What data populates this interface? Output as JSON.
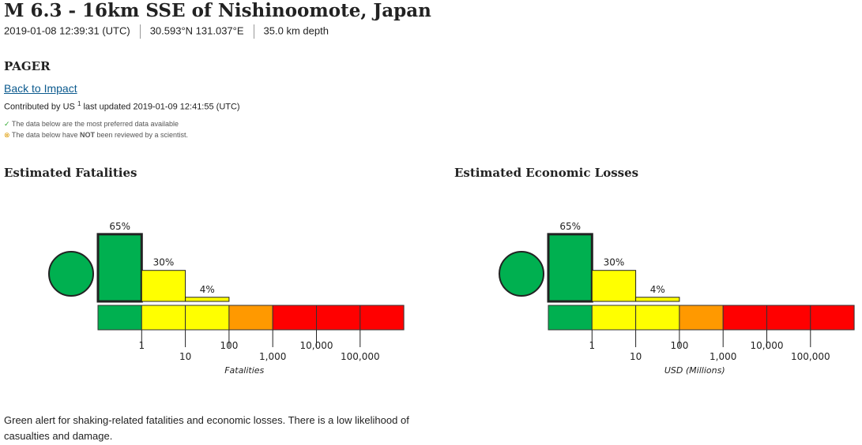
{
  "header": {
    "title": "M 6.3 - 16km SSE of Nishinoomote, Japan",
    "time": "2019-01-08 12:39:31 (UTC)",
    "location": "30.593°N 131.037°E",
    "depth": "35.0 km depth"
  },
  "section": "PAGER",
  "back_link": "Back to Impact",
  "contributed": {
    "prefix": "Contributed by US",
    "sup": "1",
    "updated": "last updated 2019-01-09 12:41:55 (UTC)"
  },
  "notes": {
    "preferred": "The data below are the most preferred data available",
    "reviewed": [
      "The data below have",
      "NOT",
      "been reviewed by a scientist."
    ]
  },
  "panels": [
    {
      "title": "Estimated Fatalities",
      "chart": {
        "type": "bar",
        "values": [
          65,
          30,
          4
        ],
        "value_labels": [
          "65%",
          "30%",
          "4%"
        ],
        "alert_color": "#00b050",
        "segment_colors": [
          "#00b050",
          "#ffff00",
          "#ffff00",
          "#ff9900",
          "#ff0000",
          "#ff0000",
          "#ff0000"
        ],
        "xscale": "log",
        "xticks": [
          1,
          10,
          100,
          {
            "value": 1000,
            "label": "1,000"
          },
          {
            "value": 10000,
            "label": "10,000"
          },
          {
            "value": 100000,
            "label": "100,000"
          }
        ],
        "xlabel": "Fatalities"
      }
    },
    {
      "title": "Estimated Economic Losses",
      "chart": {
        "type": "bar",
        "values": [
          65,
          30,
          4
        ],
        "value_labels": [
          "65%",
          "30%",
          "4%"
        ],
        "alert_color": "#00b050",
        "segment_colors": [
          "#00b050",
          "#ffff00",
          "#ffff00",
          "#ff9900",
          "#ff0000",
          "#ff0000",
          "#ff0000"
        ],
        "xscale": "log",
        "xticks": [
          1,
          10,
          100,
          {
            "value": 1000,
            "label": "1,000"
          },
          {
            "value": 10000,
            "label": "10,000"
          },
          {
            "value": 100000,
            "label": "100,000"
          }
        ],
        "xlabel": "USD (Millions)"
      }
    }
  ],
  "summary": "Green alert for shaking-related fatalities and economic losses. There is a low likelihood of casualties and damage."
}
